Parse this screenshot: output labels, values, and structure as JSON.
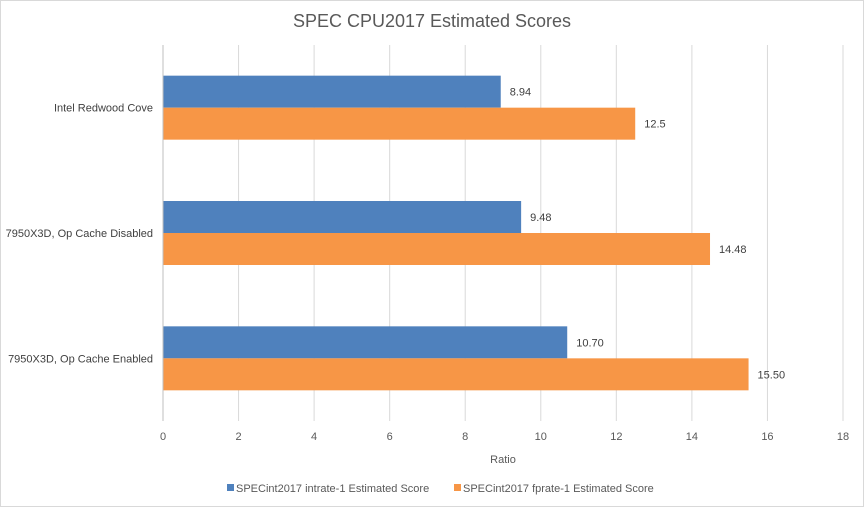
{
  "chart_data": {
    "type": "bar",
    "orientation": "horizontal",
    "title": "SPEC CPU2017 Estimated Scores",
    "xlabel": "Ratio",
    "ylabel": "",
    "xlim": [
      0,
      18
    ],
    "ticks": [
      "0",
      "2",
      "4",
      "6",
      "8",
      "10",
      "12",
      "14",
      "16",
      "18"
    ],
    "grid": true,
    "legend_position": "bottom",
    "categories": [
      "Intel Redwood Cove",
      "7950X3D, Op Cache Disabled",
      "7950X3D, Op Cache Enabled"
    ],
    "series": [
      {
        "name": "SPECint2017 intrate-1 Estimated Score",
        "color": "#4f81bd",
        "values": [
          8.94,
          9.48,
          10.7
        ],
        "labels": [
          "8.94",
          "9.48",
          "10.70"
        ]
      },
      {
        "name": "SPECint2017 fprate-1 Estimated Score",
        "color": "#f79646",
        "values": [
          12.5,
          14.48,
          15.5
        ],
        "labels": [
          "12.5",
          "14.48",
          "15.50"
        ]
      }
    ]
  }
}
